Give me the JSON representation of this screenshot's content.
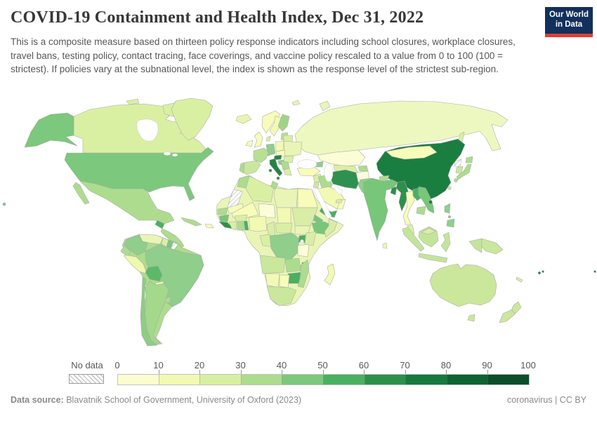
{
  "header": {
    "title": "COVID-19 Containment and Health Index, Dec 31, 2022",
    "subtitle": "This is a composite measure based on thirteen policy response indicators including school closures, workplace closures, travel bans, testing policy, contact tracing, face coverings, and vaccine policy rescaled to a value from 0 to 100 (100 = strictest). If policies vary at the subnational level, the index is shown as the response level of the strictest sub-region.",
    "logo": {
      "line1": "Our World",
      "line2": "in Data",
      "bg_color": "#12305c",
      "accent_color": "#e23d33"
    }
  },
  "footer": {
    "datasource_label": "Data source:",
    "datasource_text": " Blavatnik School of Government, University of Oxford (2023)",
    "note": "coronavirus | CC BY"
  },
  "chart_data": {
    "type": "heatmap",
    "subtype": "choropleth-world-map",
    "title": "COVID-19 Containment and Health Index",
    "date": "Dec 31, 2022",
    "unit": "index 0–100 (100 = strictest)",
    "legend": {
      "no_data_label": "No data",
      "ticks": [
        0,
        10,
        20,
        30,
        40,
        50,
        60,
        70,
        80,
        90,
        100
      ],
      "colors": [
        "#fcfdcf",
        "#f2f9b3",
        "#d8efa3",
        "#addc8e",
        "#7cc87d",
        "#4ab061",
        "#2e8f4b",
        "#17793d",
        "#0e6332",
        "#0c4e29"
      ]
    },
    "regions": [
      {
        "id": "canada",
        "name": "Canada",
        "value": 25,
        "color": "#d9f0a3"
      },
      {
        "id": "greenland",
        "name": "Greenland",
        "value": 25,
        "color": "#d9f0a3"
      },
      {
        "id": "united-states",
        "name": "United States",
        "value": 45,
        "color": "#7cc87d"
      },
      {
        "id": "mexico",
        "name": "Mexico",
        "value": 35,
        "color": "#addc8e"
      },
      {
        "id": "guatemala",
        "name": "Guatemala",
        "value": 55,
        "color": "#4ab061"
      },
      {
        "id": "central-america",
        "name": "Central America",
        "value": 35,
        "color": "#addc8e"
      },
      {
        "id": "cuba",
        "name": "Cuba",
        "value": 35,
        "color": "#addc8e"
      },
      {
        "id": "hispaniola",
        "name": "Haiti / Dominican Rep.",
        "value": 15,
        "color": "#f7fcb9"
      },
      {
        "id": "colombia",
        "name": "Colombia",
        "value": 42,
        "color": "#8fce8b"
      },
      {
        "id": "venezuela",
        "name": "Venezuela",
        "value": 22,
        "color": "#e9f5b5"
      },
      {
        "id": "guyana",
        "name": "Guyana",
        "value": 25,
        "color": "#d9f0a3"
      },
      {
        "id": "suriname",
        "name": "Suriname",
        "value": 45,
        "color": "#7cc87d"
      },
      {
        "id": "french-guiana",
        "name": "French Guiana",
        "no_data": true
      },
      {
        "id": "ecuador",
        "name": "Ecuador",
        "value": 35,
        "color": "#addc8e"
      },
      {
        "id": "peru",
        "name": "Peru",
        "value": 18,
        "color": "#f0f7ae"
      },
      {
        "id": "brazil",
        "name": "Brazil",
        "value": 42,
        "color": "#8fce8b"
      },
      {
        "id": "bolivia",
        "name": "Bolivia",
        "value": 52,
        "color": "#5db96a"
      },
      {
        "id": "paraguay",
        "name": "Paraguay",
        "value": 15,
        "color": "#f2f9b3"
      },
      {
        "id": "uruguay",
        "name": "Uruguay",
        "value": 35,
        "color": "#addc8e"
      },
      {
        "id": "argentina",
        "name": "Argentina",
        "value": 38,
        "color": "#a4d88b"
      },
      {
        "id": "chile",
        "name": "Chile",
        "value": 42,
        "color": "#8fcc84"
      },
      {
        "id": "iceland",
        "name": "Iceland",
        "value": 20,
        "color": "#e8f5b0"
      },
      {
        "id": "united-kingdom",
        "name": "United Kingdom",
        "value": 13,
        "color": "#f7fcb9"
      },
      {
        "id": "ireland",
        "name": "Ireland",
        "value": 13,
        "color": "#f7fcb9"
      },
      {
        "id": "norway",
        "name": "Norway",
        "value": 15,
        "color": "#f7fcb9"
      },
      {
        "id": "sweden",
        "name": "Sweden",
        "value": 17,
        "color": "#f2f9b3"
      },
      {
        "id": "finland",
        "name": "Finland",
        "value": 40,
        "color": "#9fd488"
      },
      {
        "id": "baltic-states",
        "name": "Baltic states",
        "value": 33,
        "color": "#b8e094"
      },
      {
        "id": "denmark",
        "name": "Denmark",
        "value": 25,
        "color": "#d9f0a3"
      },
      {
        "id": "germany",
        "name": "Germany",
        "value": 42,
        "color": "#8fce8b"
      },
      {
        "id": "france",
        "name": "France",
        "value": 33,
        "color": "#b8e094"
      },
      {
        "id": "spain",
        "name": "Spain",
        "value": 28,
        "color": "#c9e89c"
      },
      {
        "id": "portugal",
        "name": "Portugal",
        "value": 35,
        "color": "#addc8e"
      },
      {
        "id": "italy",
        "name": "Italy",
        "value": 65,
        "color": "#238443"
      },
      {
        "id": "austria",
        "name": "Austria",
        "value": 65,
        "color": "#238443"
      },
      {
        "id": "slovenia-croatia",
        "name": "Slovenia / Croatia",
        "value": 42,
        "color": "#8fce8b"
      },
      {
        "id": "poland",
        "name": "Poland",
        "value": 15,
        "color": "#f2f9b3"
      },
      {
        "id": "czechia-slovakia-hungary",
        "name": "Czechia / Slovakia / Hungary",
        "value": 13,
        "color": "#f7fcb9"
      },
      {
        "id": "balkans",
        "name": "Balkans",
        "value": 35,
        "color": "#addc8e"
      },
      {
        "id": "greece",
        "name": "Greece",
        "value": 25,
        "color": "#d9f0a3"
      },
      {
        "id": "romania",
        "name": "Romania",
        "value": 25,
        "color": "#d9f0a3"
      },
      {
        "id": "ukraine",
        "name": "Ukraine",
        "value": 22,
        "color": "#e9f5b5"
      },
      {
        "id": "belarus",
        "name": "Belarus",
        "value": 25,
        "color": "#d9f0a3"
      },
      {
        "id": "russia",
        "name": "Russia",
        "value": 18,
        "color": "#edf8c0"
      },
      {
        "id": "kazakhstan",
        "name": "Kazakhstan",
        "value": 8,
        "color": "#fcfdd5"
      },
      {
        "id": "uzbekistan-turkmenistan",
        "name": "Uzbekistan / Turkmenistan",
        "value": 25,
        "color": "#d9f0a3"
      },
      {
        "id": "kyrgyzstan-tajikistan",
        "name": "Kyrgyzstan / Tajikistan",
        "value": 35,
        "color": "#addc8e"
      },
      {
        "id": "caucasus",
        "name": "Caucasus",
        "value": 42,
        "color": "#8fce8b"
      },
      {
        "id": "turkey",
        "name": "Turkey",
        "value": 13,
        "color": "#f7fcb9"
      },
      {
        "id": "syria",
        "name": "Syria / Levant",
        "value": 25,
        "color": "#d9f0a3"
      },
      {
        "id": "israel-jordan",
        "name": "Israel / Jordan",
        "value": 28,
        "color": "#c9e89c"
      },
      {
        "id": "iraq",
        "name": "Iraq",
        "value": 35,
        "color": "#addc8e"
      },
      {
        "id": "saudi-arabia",
        "name": "Saudi Arabia",
        "value": 17,
        "color": "#f2f9b3"
      },
      {
        "id": "yemen",
        "name": "Yemen",
        "value": 55,
        "color": "#4ab061"
      },
      {
        "id": "oman",
        "name": "Oman",
        "value": 15,
        "color": "#f7fcb9"
      },
      {
        "id": "uae-qatar",
        "name": "UAE / Qatar",
        "value": 25,
        "color": "#d9f0a3"
      },
      {
        "id": "iran",
        "name": "Iran",
        "value": 62,
        "color": "#2e9150"
      },
      {
        "id": "afghanistan",
        "name": "Afghanistan",
        "value": 8,
        "color": "#fbfcdc"
      },
      {
        "id": "pakistan",
        "name": "Pakistan",
        "value": 42,
        "color": "#8fce8b"
      },
      {
        "id": "india",
        "name": "India",
        "value": 45,
        "color": "#78c679"
      },
      {
        "id": "nepal",
        "name": "Nepal",
        "value": 35,
        "color": "#addc8e"
      },
      {
        "id": "bangladesh",
        "name": "Bangladesh / Bhutan",
        "value": 58,
        "color": "#2e8f4b"
      },
      {
        "id": "sri-lanka",
        "name": "Sri Lanka",
        "value": 17,
        "color": "#f2f9b3"
      },
      {
        "id": "myanmar",
        "name": "Myanmar",
        "value": 58,
        "color": "#2e8f4b"
      },
      {
        "id": "thailand",
        "name": "Thailand",
        "value": 15,
        "color": "#f7fcb9"
      },
      {
        "id": "laos",
        "name": "Laos",
        "value": 52,
        "color": "#4ab061"
      },
      {
        "id": "vietnam",
        "name": "Vietnam",
        "value": 45,
        "color": "#78c679"
      },
      {
        "id": "cambodia",
        "name": "Cambodia",
        "value": 35,
        "color": "#addc8e"
      },
      {
        "id": "china",
        "name": "China",
        "value": 72,
        "color": "#1b7e41"
      },
      {
        "id": "hainan",
        "name": "Hainan (China)",
        "value": 72,
        "color": "#1b7e41"
      },
      {
        "id": "mongolia",
        "name": "Mongolia",
        "value": 13,
        "color": "#f7fcb9"
      },
      {
        "id": "north-korea",
        "name": "North Korea",
        "no_data": true
      },
      {
        "id": "south-korea",
        "name": "South Korea",
        "value": 28,
        "color": "#c9e89c"
      },
      {
        "id": "japan",
        "name": "Japan",
        "value": 33,
        "color": "#addc8e"
      },
      {
        "id": "taiwan",
        "name": "Taiwan",
        "value": 28,
        "color": "#c9e89c"
      },
      {
        "id": "philippines",
        "name": "Philippines",
        "value": 42,
        "color": "#8fce8b"
      },
      {
        "id": "malaysia",
        "name": "Malaysia",
        "value": 25,
        "color": "#d9f0a3"
      },
      {
        "id": "indonesia",
        "name": "Indonesia",
        "value": 30,
        "color": "#c3e59a"
      },
      {
        "id": "papua-new-guinea",
        "name": "Papua New Guinea",
        "value": 28,
        "color": "#c9e89c"
      },
      {
        "id": "australia",
        "name": "Australia",
        "value": 27,
        "color": "#cbe79c"
      },
      {
        "id": "new-zealand",
        "name": "New Zealand",
        "value": 27,
        "color": "#cbe79c"
      },
      {
        "id": "fiji",
        "name": "Fiji",
        "value": 65,
        "color": "#238443"
      },
      {
        "id": "morocco",
        "name": "Morocco",
        "value": 35,
        "color": "#addc8e"
      },
      {
        "id": "western-sahara",
        "name": "Western Sahara",
        "no_data": true
      },
      {
        "id": "algeria",
        "name": "Algeria",
        "value": 25,
        "color": "#d9f0a3"
      },
      {
        "id": "tunisia",
        "name": "Tunisia",
        "value": 35,
        "color": "#addc8e"
      },
      {
        "id": "libya",
        "name": "Libya",
        "value": 20,
        "color": "#e9f5b5"
      },
      {
        "id": "egypt",
        "name": "Egypt",
        "value": 13,
        "color": "#f7fcb9"
      },
      {
        "id": "mauritania",
        "name": "Mauritania",
        "value": 15,
        "color": "#f7fcb9"
      },
      {
        "id": "mali",
        "name": "Mali",
        "value": 15,
        "color": "#f7fcb9"
      },
      {
        "id": "niger",
        "name": "Niger",
        "value": 8,
        "color": "#fdfdd8"
      },
      {
        "id": "chad",
        "name": "Chad",
        "value": 15,
        "color": "#f2f9b3"
      },
      {
        "id": "sudan",
        "name": "Sudan",
        "value": 25,
        "color": "#d9eda6"
      },
      {
        "id": "south-sudan",
        "name": "South Sudan",
        "value": 20,
        "color": "#e9f5b5"
      },
      {
        "id": "eritrea",
        "name": "Eritrea",
        "value": 45,
        "color": "#78c679"
      },
      {
        "id": "ethiopia",
        "name": "Ethiopia",
        "value": 45,
        "color": "#78c679"
      },
      {
        "id": "somalia",
        "name": "Somalia",
        "value": 25,
        "color": "#d9eda6"
      },
      {
        "id": "senegal",
        "name": "Senegal",
        "value": 35,
        "color": "#addc8e"
      },
      {
        "id": "guinea",
        "name": "Guinea",
        "value": 45,
        "color": "#78c679"
      },
      {
        "id": "sierra-leone-liberia",
        "name": "Sierra Leone / Liberia",
        "value": 55,
        "color": "#2e8f4b"
      },
      {
        "id": "ivory-coast",
        "name": "Côte d'Ivoire",
        "value": 25,
        "color": "#d9f0a3"
      },
      {
        "id": "ghana",
        "name": "Ghana",
        "value": 35,
        "color": "#addc8e"
      },
      {
        "id": "togo-benin",
        "name": "Togo / Benin",
        "value": 52,
        "color": "#4ab061"
      },
      {
        "id": "burkina-faso",
        "name": "Burkina Faso",
        "value": 25,
        "color": "#d9f0a3"
      },
      {
        "id": "nigeria",
        "name": "Nigeria",
        "value": 15,
        "color": "#f2f9b3"
      },
      {
        "id": "cameroon",
        "name": "Cameroon",
        "value": 28,
        "color": "#d9eda6"
      },
      {
        "id": "central-african-republic",
        "name": "Central African Republic",
        "value": 25,
        "color": "#d9f0a3"
      },
      {
        "id": "gabon-congo",
        "name": "Gabon / Congo",
        "value": 25,
        "color": "#d9f0a3"
      },
      {
        "id": "drc",
        "name": "Democratic Republic of Congo",
        "value": 42,
        "color": "#8fce8b"
      },
      {
        "id": "uganda",
        "name": "Uganda",
        "value": 55,
        "color": "#4ab061"
      },
      {
        "id": "kenya",
        "name": "Kenya",
        "value": 28,
        "color": "#d9eda6"
      },
      {
        "id": "tanzania",
        "name": "Tanzania",
        "value": 8,
        "color": "#fdfdd8"
      },
      {
        "id": "angola",
        "name": "Angola",
        "value": 28,
        "color": "#c9e89c"
      },
      {
        "id": "zambia",
        "name": "Zambia",
        "value": 35,
        "color": "#addc8e"
      },
      {
        "id": "malawi",
        "name": "Malawi",
        "value": 52,
        "color": "#4ab061"
      },
      {
        "id": "zimbabwe",
        "name": "Zimbabwe",
        "value": 55,
        "color": "#4ab061"
      },
      {
        "id": "mozambique",
        "name": "Mozambique",
        "value": 35,
        "color": "#addc8e"
      },
      {
        "id": "namibia",
        "name": "Namibia",
        "value": 15,
        "color": "#f2f9b3"
      },
      {
        "id": "botswana",
        "name": "Botswana",
        "value": 13,
        "color": "#f7fcb9"
      },
      {
        "id": "south-africa",
        "name": "South Africa",
        "value": 28,
        "color": "#c9e89c"
      },
      {
        "id": "madagascar",
        "name": "Madagascar",
        "value": 15,
        "color": "#f2f9b3"
      },
      {
        "id": "sakhalin",
        "name": "Sakhalin (Russia)",
        "value": 18,
        "color": "#d9f0a3"
      },
      {
        "id": "arctic-islands",
        "name": "Arctic islands",
        "value": 20,
        "color": "#e9f5b5"
      },
      {
        "id": "africa-base",
        "name": "Africa (other)",
        "value": 20,
        "color": "#e9f5b5"
      },
      {
        "id": "south-america-base",
        "name": "South America (other)",
        "value": 35,
        "color": "#addc8e"
      }
    ]
  }
}
